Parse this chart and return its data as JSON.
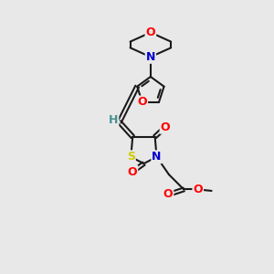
{
  "bg_color": "#e8e8e8",
  "bond_color": "#1a1a1a",
  "atom_colors": {
    "O": "#ff0000",
    "N": "#0000cd",
    "S": "#cccc00",
    "H": "#4a9090",
    "C": "#1a1a1a"
  },
  "fig_size": [
    3.0,
    3.0
  ],
  "dpi": 100
}
